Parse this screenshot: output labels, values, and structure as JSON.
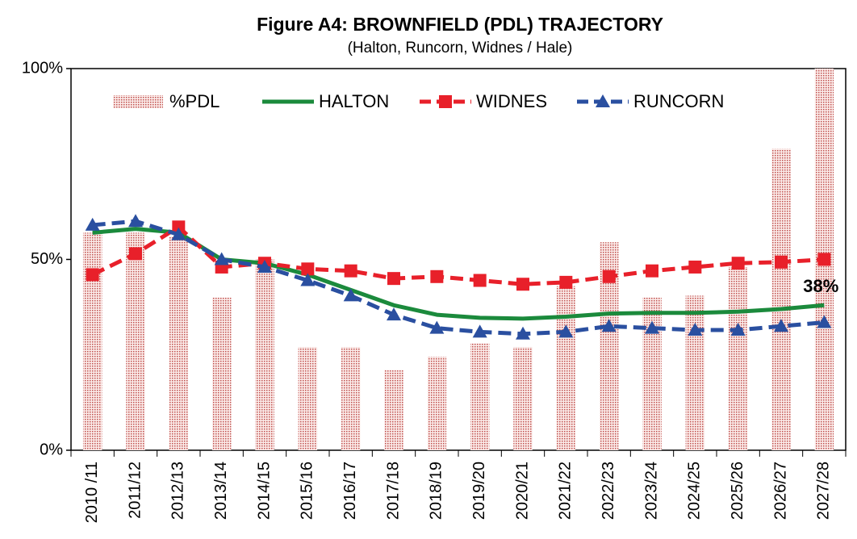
{
  "chart_data": {
    "type": "bar",
    "title": "Figure A4:  BROWNFIELD (PDL) TRAJECTORY",
    "subtitle": "(Halton, Runcorn, Widnes / Hale)",
    "categories": [
      "2010 /11",
      "2011/12",
      "2012/13",
      "2013/14",
      "2014/15",
      "2015/16",
      "2016/17",
      "2017/18",
      "2018/19",
      "2019/20",
      "2020/21",
      "2021/22",
      "2022/23",
      "2023/24",
      "2024/25",
      "2025/26",
      "2026/27",
      "2027/28"
    ],
    "series": [
      {
        "name": "%PDL",
        "type": "bar",
        "color": "#c0504d",
        "values": [
          57,
          57,
          56,
          40,
          50,
          27,
          27,
          21,
          24.5,
          28,
          27,
          43,
          54.5,
          40,
          40.5,
          48,
          79,
          100
        ]
      },
      {
        "name": "HALTON",
        "type": "line",
        "color": "#1b8a3c",
        "values": [
          57,
          58,
          57,
          50,
          49,
          46,
          42,
          38,
          35.5,
          34.7,
          34.5,
          35,
          35.8,
          36,
          36,
          36.3,
          37,
          38
        ],
        "value_labels": [
          null,
          null,
          null,
          null,
          null,
          null,
          null,
          null,
          null,
          null,
          null,
          null,
          null,
          null,
          null,
          null,
          null,
          "38%"
        ]
      },
      {
        "name": "WIDNES",
        "type": "line",
        "marker": "square",
        "dashed": true,
        "color": "#e8202a",
        "values": [
          46,
          51.5,
          58.5,
          48,
          49,
          47.5,
          47,
          45,
          45.5,
          44.5,
          43.5,
          44,
          45.5,
          47,
          48,
          49,
          49.3,
          50
        ]
      },
      {
        "name": "RUNCORN",
        "type": "line",
        "marker": "triangle",
        "dashed": true,
        "color": "#2a4fa0",
        "values": [
          59,
          60,
          56.5,
          50,
          48,
          44.5,
          40.5,
          35.5,
          32,
          31,
          30.5,
          31,
          32.5,
          32,
          31.5,
          31.5,
          32.5,
          33.5
        ]
      }
    ],
    "ylim": [
      0,
      100
    ],
    "yticks": [
      {
        "value": 0,
        "label": "0%"
      },
      {
        "value": 50,
        "label": "50%"
      },
      {
        "value": 100,
        "label": "100%"
      }
    ],
    "legend": "top"
  }
}
